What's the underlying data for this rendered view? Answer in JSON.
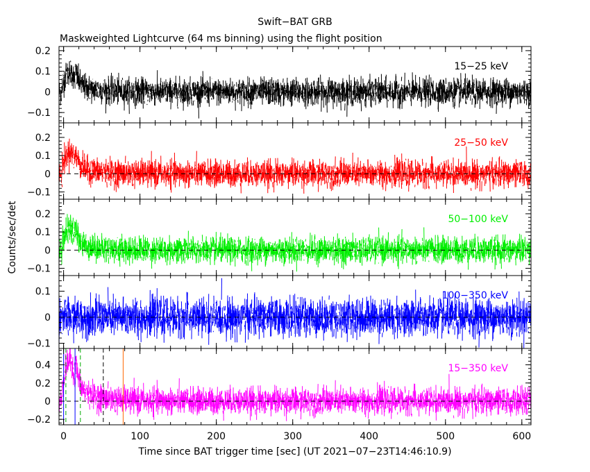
{
  "title": "Swift−BAT GRB",
  "subtitle": "Maskweighted Lightcurve (64 ms binning) using the flight position",
  "chart_data": {
    "type": "line",
    "xlabel": "Time since BAT trigger time [sec] (UT 2021−07−23T14:46:10.9)",
    "ylabel": "Counts/sec/det",
    "xlim": [
      -6,
      612
    ],
    "x_ticks": [
      0,
      100,
      200,
      300,
      400,
      500,
      600
    ],
    "x_tick_labels": [
      "0",
      "100",
      "200",
      "300",
      "400",
      "500",
      "600"
    ],
    "panels": [
      {
        "band": "15−25 keV",
        "color": "#000000",
        "ylim": [
          -0.15,
          0.22
        ],
        "y_ticks": [
          -0.1,
          0,
          0.1,
          0.2
        ],
        "y_tick_labels": [
          "−0.1",
          "0",
          "0.1",
          "0.2"
        ],
        "zero_line": false,
        "peak_height": 0.1,
        "noise_sigma": 0.032
      },
      {
        "band": "25−50 keV",
        "color": "#ff0000",
        "ylim": [
          -0.14,
          0.28
        ],
        "y_ticks": [
          -0.1,
          0,
          0.1,
          0.2
        ],
        "y_tick_labels": [
          "−0.1",
          "0",
          "0.1",
          "0.2"
        ],
        "zero_line": true,
        "peak_height": 0.12,
        "noise_sigma": 0.035
      },
      {
        "band": "50−100 keV",
        "color": "#00ee00",
        "ylim": [
          -0.14,
          0.28
        ],
        "y_ticks": [
          -0.1,
          0,
          0.1,
          0.2
        ],
        "y_tick_labels": [
          "−0.1",
          "0",
          "0.1",
          "0.2"
        ],
        "zero_line": true,
        "peak_height": 0.12,
        "noise_sigma": 0.035
      },
      {
        "band": "100−350 keV",
        "color": "#0000ff",
        "ylim": [
          -0.12,
          0.16
        ],
        "y_ticks": [
          -0.1,
          0,
          0.1
        ],
        "y_tick_labels": [
          "−0.1",
          "0",
          "0.1"
        ],
        "zero_line": true,
        "peak_height": 0.0,
        "noise_sigma": 0.035
      },
      {
        "band": "15−350 keV",
        "color": "#ff00ff",
        "ylim": [
          -0.26,
          0.58
        ],
        "y_ticks": [
          -0.2,
          0,
          0.2,
          0.4
        ],
        "y_tick_labels": [
          "−0.2",
          "0",
          "0.2",
          "0.4"
        ],
        "zero_line": true,
        "peak_height": 0.45,
        "noise_sigma": 0.07,
        "markers": [
          {
            "x": 0,
            "color": "#0000ff",
            "style": "solid"
          },
          {
            "x": 15,
            "color": "#0000ff",
            "style": "solid"
          },
          {
            "x": 3,
            "color": "#00aa00",
            "style": "dashed"
          },
          {
            "x": 22,
            "color": "#00aa00",
            "style": "dashed"
          },
          {
            "x": 52,
            "color": "#000000",
            "style": "dashed"
          },
          {
            "x": 78,
            "color": "#ff6600",
            "style": "solid"
          }
        ]
      }
    ]
  }
}
